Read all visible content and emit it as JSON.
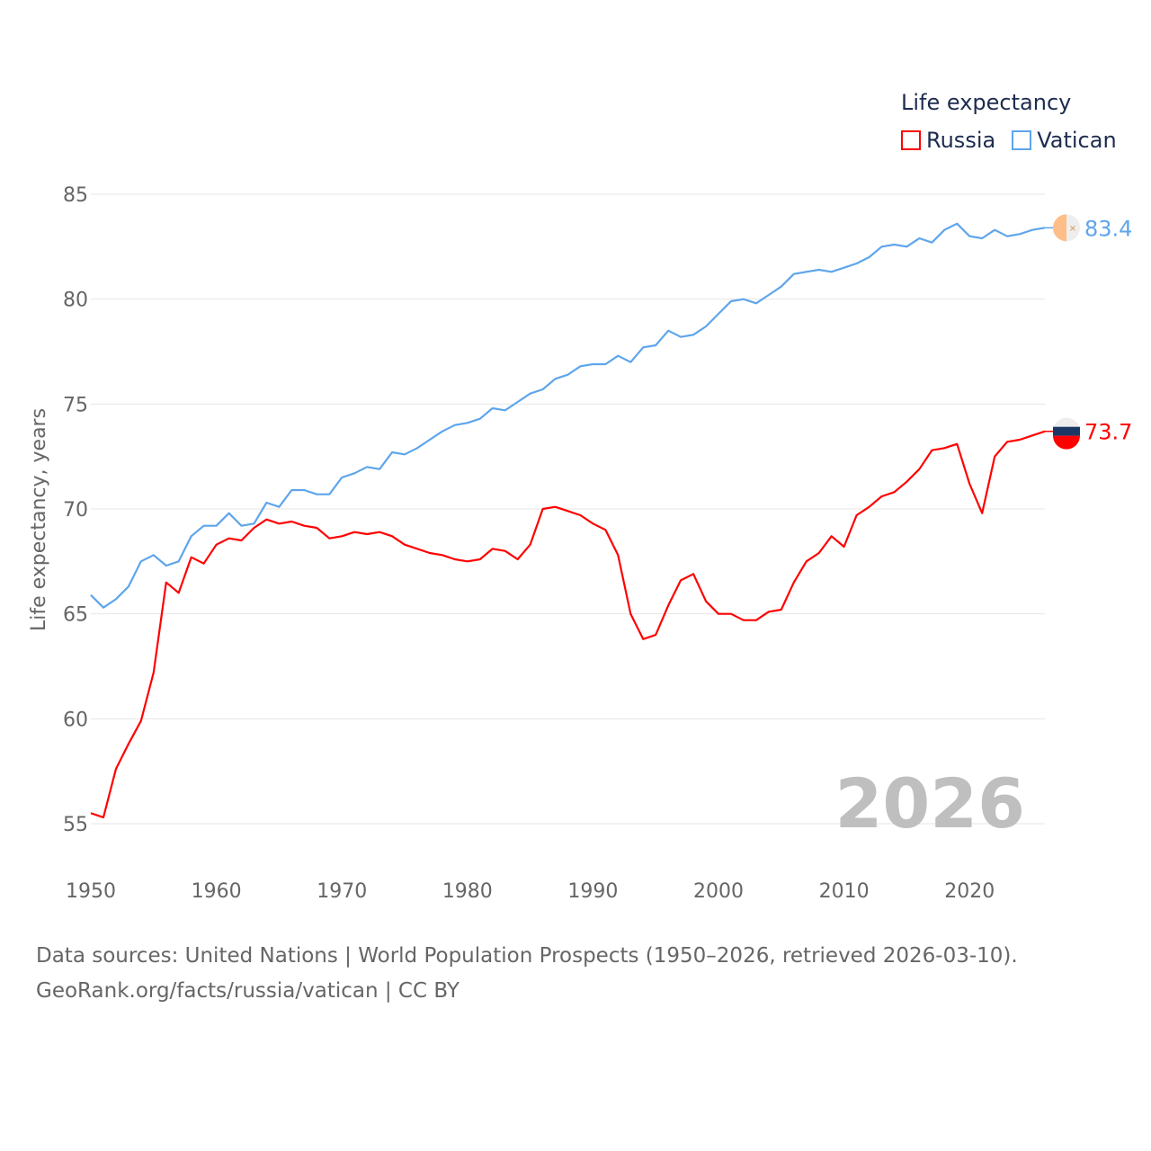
{
  "chart_data": {
    "type": "line",
    "title": "",
    "xlabel": "",
    "ylabel": "Life expectancy, years",
    "xlim": [
      1950,
      2026
    ],
    "ylim": [
      55,
      85
    ],
    "yticks": [
      55,
      60,
      65,
      70,
      75,
      80,
      85
    ],
    "xticks": [
      1950,
      1960,
      1970,
      1980,
      1990,
      2000,
      2010,
      2020
    ],
    "grid": true,
    "legend_title": "Life expectancy",
    "legend_placement": "top-right",
    "year_watermark": "2026",
    "x_start": 1950,
    "series": [
      {
        "name": "Russia",
        "color": "#ff0000",
        "end_label": "73.7",
        "values": [
          55.5,
          55.3,
          57.6,
          58.8,
          59.9,
          62.2,
          66.5,
          66.0,
          67.7,
          67.4,
          68.3,
          68.6,
          68.5,
          69.1,
          69.5,
          69.3,
          69.4,
          69.2,
          69.1,
          68.6,
          68.7,
          68.9,
          68.8,
          68.9,
          68.7,
          68.3,
          68.1,
          67.9,
          67.8,
          67.6,
          67.5,
          67.6,
          68.1,
          68.0,
          67.6,
          68.3,
          70.0,
          70.1,
          69.9,
          69.7,
          69.3,
          69.0,
          67.8,
          65.0,
          63.8,
          64.0,
          65.4,
          66.6,
          66.9,
          65.6,
          65.0,
          65.0,
          64.7,
          64.7,
          65.1,
          65.2,
          66.5,
          67.5,
          67.9,
          68.7,
          68.2,
          69.7,
          70.1,
          70.6,
          70.8,
          71.3,
          71.9,
          72.8,
          72.9,
          73.1,
          71.2,
          69.8,
          72.5,
          73.2,
          73.3,
          73.5,
          73.7
        ]
      },
      {
        "name": "Vatican",
        "color": "#5ea5ec",
        "end_label": "83.4",
        "values": [
          65.9,
          65.3,
          65.7,
          66.3,
          67.5,
          67.8,
          67.3,
          67.5,
          68.7,
          69.2,
          69.2,
          69.8,
          69.2,
          69.3,
          70.3,
          70.1,
          70.9,
          70.9,
          70.7,
          70.7,
          71.5,
          71.7,
          72.0,
          71.9,
          72.7,
          72.6,
          72.9,
          73.3,
          73.7,
          74.0,
          74.1,
          74.3,
          74.8,
          74.7,
          75.1,
          75.5,
          75.7,
          76.2,
          76.4,
          76.8,
          76.9,
          76.9,
          77.3,
          77.0,
          77.7,
          77.8,
          78.5,
          78.2,
          78.3,
          78.7,
          79.3,
          79.9,
          80.0,
          79.8,
          80.2,
          80.6,
          81.2,
          81.3,
          81.4,
          81.3,
          81.5,
          81.7,
          82.0,
          82.5,
          82.6,
          82.5,
          82.9,
          82.7,
          83.3,
          83.6,
          83.0,
          82.9,
          83.3,
          83.0,
          83.1,
          83.3,
          83.4
        ]
      }
    ]
  },
  "source": {
    "line1": "Data sources: United Nations | World Population Prospects (1950–2026, retrieved 2026-03-10).",
    "line2": "GeoRank.org/facts/russia/vatican | CC BY"
  }
}
